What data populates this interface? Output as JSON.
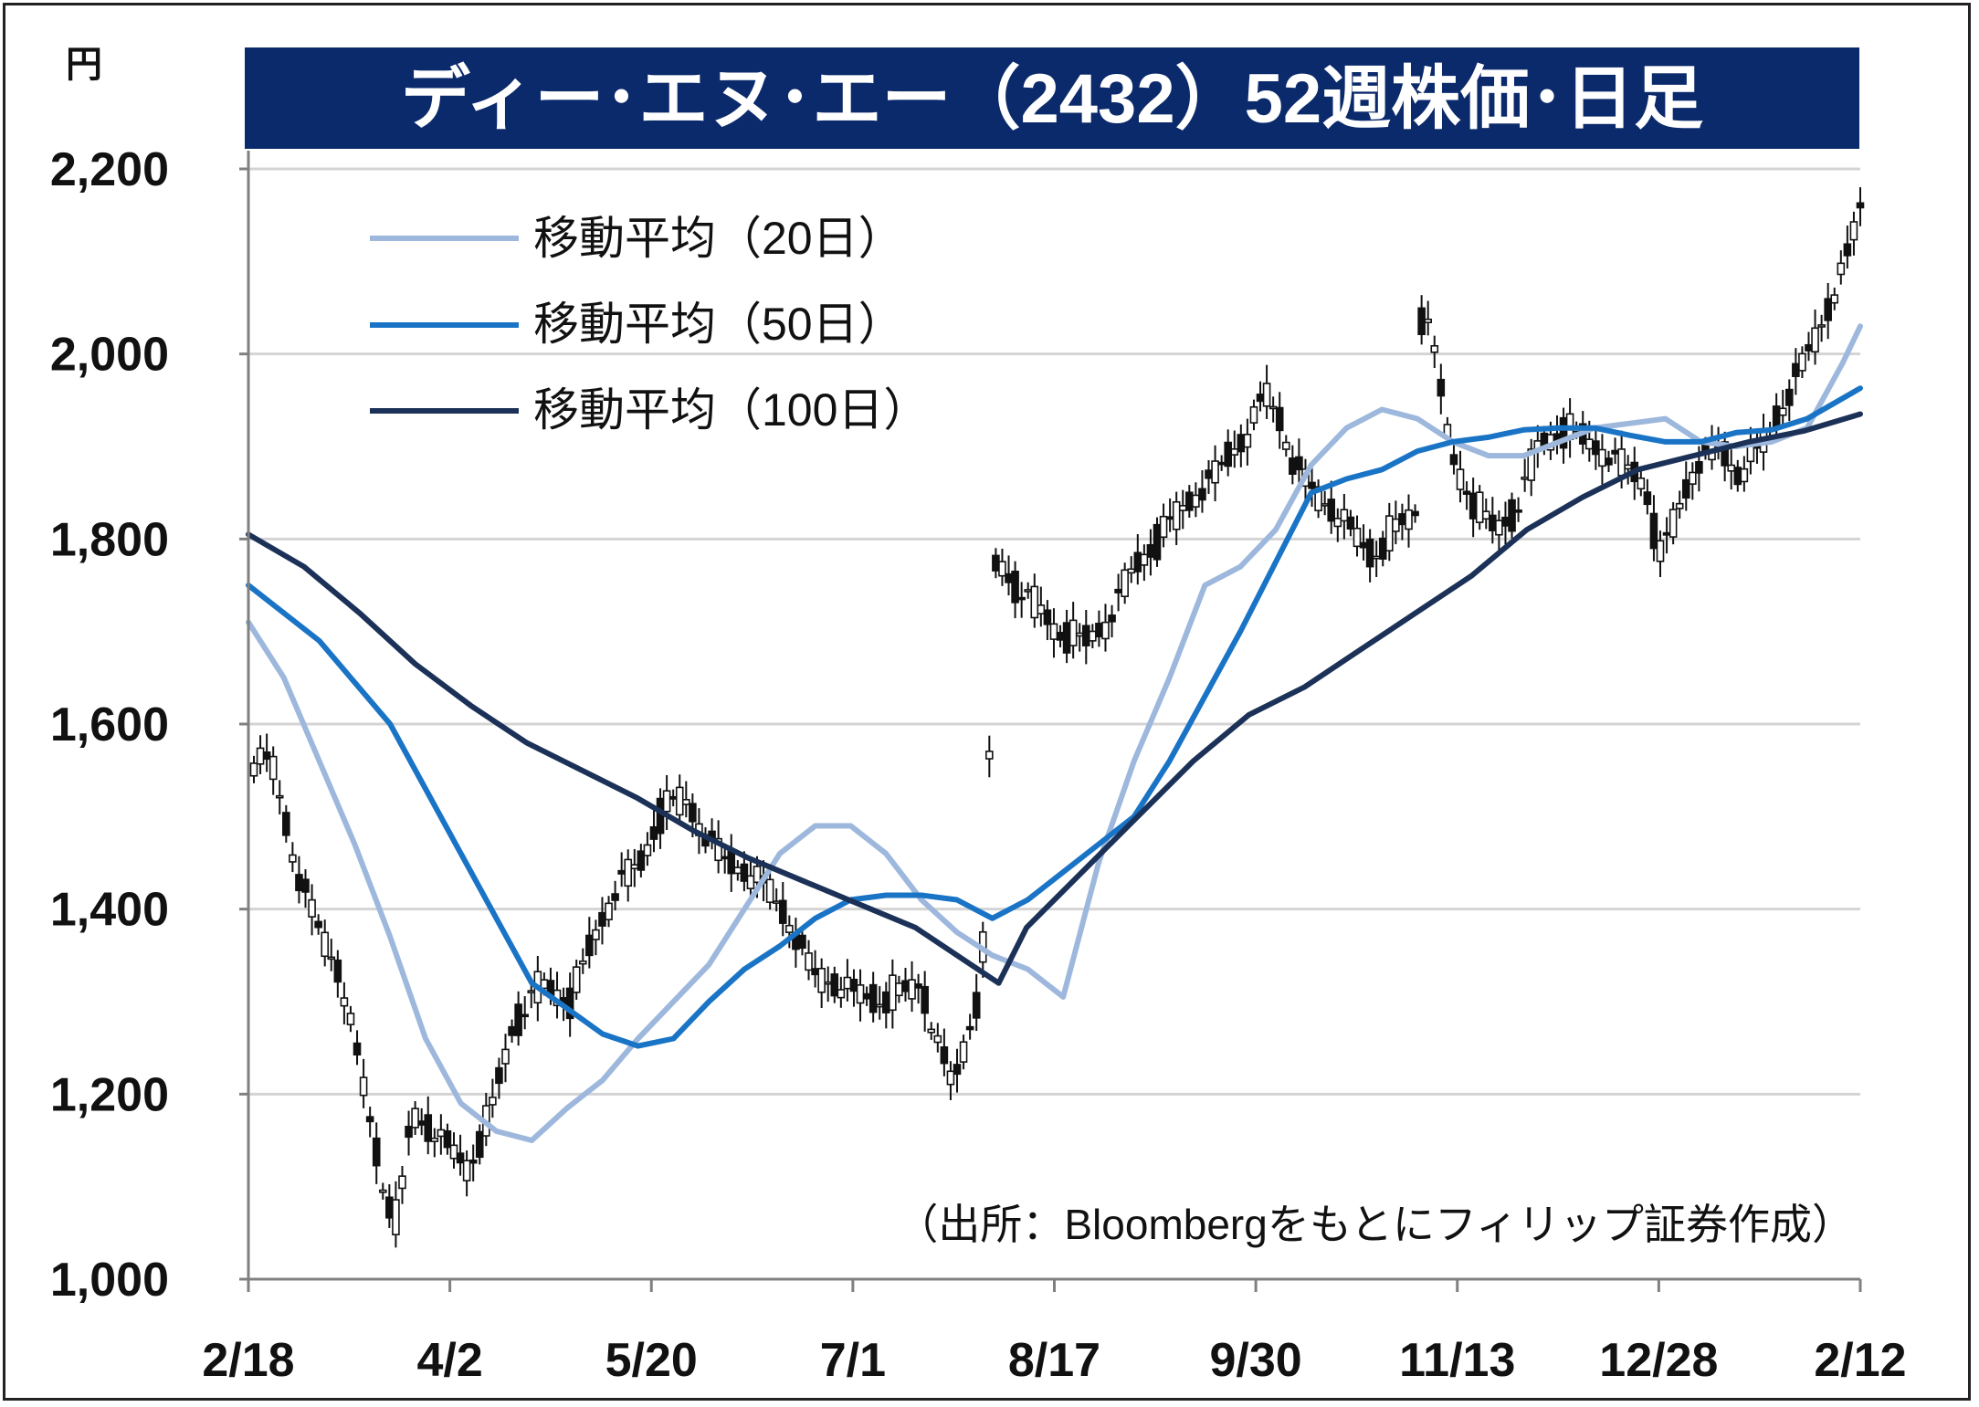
{
  "colors": {
    "title_bg": "#0b2a6b",
    "title_fg": "#ffffff",
    "ma20": "#9db8dc",
    "ma50": "#1a74c6",
    "ma100": "#1b3157",
    "grid": "#d4d4d4",
    "candle": "#111111"
  },
  "chart_data": {
    "type": "candlestick",
    "title": "ディー･エヌ･エー（2432）52週株価･日足",
    "unit_label": "円",
    "source_note": "（出所：Bloombergをもとにフィリップ証券作成）",
    "ylim": [
      1000,
      2200
    ],
    "y_ticks": [
      1000,
      1200,
      1400,
      1600,
      1800,
      2000,
      2200
    ],
    "y_tick_labels": [
      "1,000",
      "1,200",
      "1,400",
      "1,600",
      "1,800",
      "2,000",
      "2,200"
    ],
    "x_tick_labels": [
      "2/18",
      "4/2",
      "5/20",
      "7/1",
      "8/17",
      "9/30",
      "11/13",
      "12/28",
      "2/12"
    ],
    "grid": "horizontal",
    "legend_position": "top-left",
    "legend": [
      "移動平均（20日）",
      "移動平均（50日）",
      "移動平均（100日）"
    ],
    "series": [
      {
        "name": "移動平均（20日）",
        "color_key": "ma20",
        "points": [
          [
            0,
            1710
          ],
          [
            10,
            1650
          ],
          [
            20,
            1560
          ],
          [
            30,
            1470
          ],
          [
            40,
            1370
          ],
          [
            50,
            1260
          ],
          [
            60,
            1190
          ],
          [
            70,
            1160
          ],
          [
            80,
            1150
          ],
          [
            90,
            1185
          ],
          [
            100,
            1215
          ],
          [
            110,
            1260
          ],
          [
            120,
            1300
          ],
          [
            130,
            1340
          ],
          [
            140,
            1400
          ],
          [
            150,
            1460
          ],
          [
            160,
            1490
          ],
          [
            170,
            1490
          ],
          [
            180,
            1460
          ],
          [
            190,
            1410
          ],
          [
            200,
            1375
          ],
          [
            210,
            1350
          ],
          [
            220,
            1335
          ],
          [
            230,
            1305
          ],
          [
            240,
            1450
          ],
          [
            250,
            1560
          ],
          [
            260,
            1650
          ],
          [
            270,
            1750
          ],
          [
            280,
            1770
          ],
          [
            290,
            1810
          ],
          [
            300,
            1880
          ],
          [
            310,
            1920
          ],
          [
            320,
            1940
          ],
          [
            330,
            1930
          ],
          [
            340,
            1905
          ],
          [
            350,
            1890
          ],
          [
            360,
            1890
          ],
          [
            370,
            1905
          ],
          [
            380,
            1920
          ],
          [
            390,
            1925
          ],
          [
            400,
            1930
          ],
          [
            410,
            1905
          ],
          [
            420,
            1900
          ],
          [
            430,
            1905
          ],
          [
            440,
            1920
          ],
          [
            450,
            1990
          ],
          [
            455,
            2030
          ]
        ]
      },
      {
        "name": "移動平均（50日）",
        "color_key": "ma50",
        "points": [
          [
            0,
            1750
          ],
          [
            20,
            1690
          ],
          [
            40,
            1600
          ],
          [
            60,
            1460
          ],
          [
            80,
            1320
          ],
          [
            100,
            1265
          ],
          [
            110,
            1252
          ],
          [
            120,
            1260
          ],
          [
            130,
            1300
          ],
          [
            140,
            1335
          ],
          [
            150,
            1360
          ],
          [
            160,
            1390
          ],
          [
            170,
            1410
          ],
          [
            180,
            1415
          ],
          [
            190,
            1415
          ],
          [
            200,
            1410
          ],
          [
            210,
            1390
          ],
          [
            220,
            1410
          ],
          [
            230,
            1440
          ],
          [
            240,
            1470
          ],
          [
            250,
            1500
          ],
          [
            260,
            1560
          ],
          [
            270,
            1630
          ],
          [
            280,
            1700
          ],
          [
            290,
            1775
          ],
          [
            300,
            1850
          ],
          [
            310,
            1865
          ],
          [
            320,
            1875
          ],
          [
            330,
            1895
          ],
          [
            340,
            1905
          ],
          [
            350,
            1910
          ],
          [
            360,
            1918
          ],
          [
            370,
            1920
          ],
          [
            380,
            1920
          ],
          [
            390,
            1912
          ],
          [
            400,
            1905
          ],
          [
            410,
            1905
          ],
          [
            420,
            1915
          ],
          [
            430,
            1918
          ],
          [
            440,
            1930
          ],
          [
            455,
            1963
          ]
        ]
      },
      {
        "name": "移動平均（100日）",
        "color_key": "ma100",
        "points": [
          [
            0,
            1805
          ],
          [
            20,
            1770
          ],
          [
            40,
            1720
          ],
          [
            60,
            1665
          ],
          [
            80,
            1620
          ],
          [
            100,
            1580
          ],
          [
            120,
            1550
          ],
          [
            140,
            1520
          ],
          [
            160,
            1485
          ],
          [
            180,
            1455
          ],
          [
            200,
            1430
          ],
          [
            220,
            1405
          ],
          [
            240,
            1380
          ],
          [
            260,
            1340
          ],
          [
            270,
            1320
          ],
          [
            280,
            1380
          ],
          [
            300,
            1440
          ],
          [
            320,
            1500
          ],
          [
            340,
            1560
          ],
          [
            360,
            1610
          ],
          [
            380,
            1640
          ],
          [
            400,
            1680
          ],
          [
            420,
            1720
          ],
          [
            440,
            1760
          ],
          [
            460,
            1810
          ],
          [
            480,
            1845
          ],
          [
            500,
            1875
          ],
          [
            520,
            1890
          ],
          [
            540,
            1905
          ],
          [
            560,
            1917
          ],
          [
            580,
            1935
          ]
        ]
      }
    ]
  }
}
